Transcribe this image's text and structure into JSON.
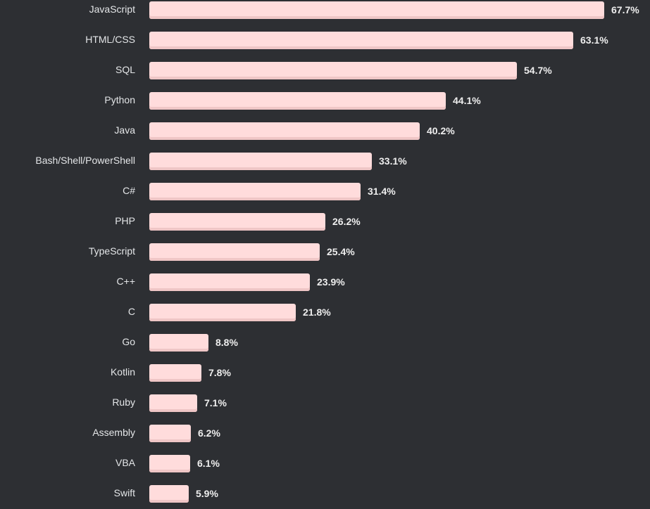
{
  "chart_data": {
    "type": "bar",
    "orientation": "horizontal",
    "title": "",
    "xlabel": "",
    "ylabel": "",
    "xlim": [
      0,
      67.7
    ],
    "grid": false,
    "categories": [
      "JavaScript",
      "HTML/CSS",
      "SQL",
      "Python",
      "Java",
      "Bash/Shell/PowerShell",
      "C#",
      "PHP",
      "TypeScript",
      "C++",
      "C",
      "Go",
      "Kotlin",
      "Ruby",
      "Assembly",
      "VBA",
      "Swift"
    ],
    "values": [
      67.7,
      63.1,
      54.7,
      44.1,
      40.2,
      33.1,
      31.4,
      26.2,
      25.4,
      23.9,
      21.8,
      8.8,
      7.8,
      7.1,
      6.2,
      6.1,
      5.9
    ],
    "value_labels": [
      "67.7%",
      "63.1%",
      "54.7%",
      "44.1%",
      "40.2%",
      "33.1%",
      "31.4%",
      "26.2%",
      "25.4%",
      "23.9%",
      "21.8%",
      "8.8%",
      "7.8%",
      "7.1%",
      "6.2%",
      "6.1%",
      "5.9%"
    ],
    "colors": {
      "bar": "#ffdcdc",
      "bar_shadow": "#efc6c6",
      "background": "#2d2f33"
    }
  }
}
